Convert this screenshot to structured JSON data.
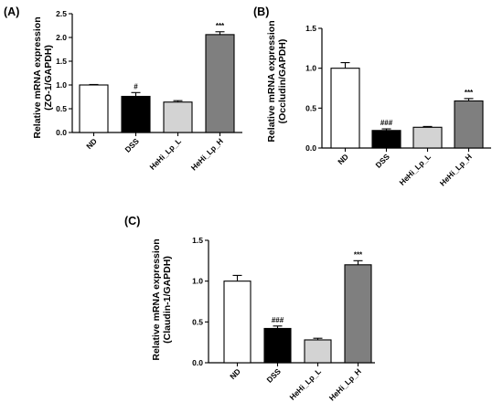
{
  "chart_data": [
    {
      "type": "bar",
      "panel": "(A)",
      "ylabel": [
        "Relative mRNA expression",
        "(ZO-1/GAPDH)"
      ],
      "categories": [
        "ND",
        "DSS",
        "HeHi_Lp_L",
        "HeHi_Lp_H"
      ],
      "values": [
        1.0,
        0.76,
        0.64,
        2.06
      ],
      "errors": [
        0.01,
        0.08,
        0.03,
        0.06
      ],
      "annotations": [
        "",
        "#",
        "",
        "***"
      ],
      "ylim": [
        0,
        2.5
      ],
      "yticks": [
        "0.0",
        "0.5",
        "1.0",
        "1.5",
        "2.0",
        "2.5"
      ],
      "colors": [
        "#ffffff",
        "#000000",
        "#d3d3d3",
        "#7f7f7f"
      ]
    },
    {
      "type": "bar",
      "panel": "(B)",
      "ylabel": [
        "Relative mRNA expression",
        "(Occludin/GAPDH)"
      ],
      "categories": [
        "ND",
        "DSS",
        "HeHi_Lp_L",
        "HeHi_Lp_H"
      ],
      "values": [
        1.0,
        0.22,
        0.26,
        0.59
      ],
      "errors": [
        0.07,
        0.02,
        0.01,
        0.03
      ],
      "annotations": [
        "",
        "###",
        "",
        "***"
      ],
      "ylim": [
        0,
        1.5
      ],
      "yticks": [
        "0.0",
        "0.5",
        "1.0",
        "1.5"
      ],
      "colors": [
        "#ffffff",
        "#000000",
        "#d3d3d3",
        "#7f7f7f"
      ]
    },
    {
      "type": "bar",
      "panel": "(C)",
      "ylabel": [
        "Relative mRNA expression",
        "(Claudin-1/GAPDH)"
      ],
      "categories": [
        "ND",
        "DSS",
        "HeHi_Lp_L",
        "HeHi_Lp_H"
      ],
      "values": [
        1.0,
        0.42,
        0.28,
        1.2
      ],
      "errors": [
        0.07,
        0.03,
        0.02,
        0.05
      ],
      "annotations": [
        "",
        "###",
        "",
        "***"
      ],
      "ylim": [
        0,
        1.5
      ],
      "yticks": [
        "0.0",
        "0.5",
        "1.0",
        "1.5"
      ],
      "colors": [
        "#ffffff",
        "#000000",
        "#d3d3d3",
        "#7f7f7f"
      ]
    }
  ]
}
